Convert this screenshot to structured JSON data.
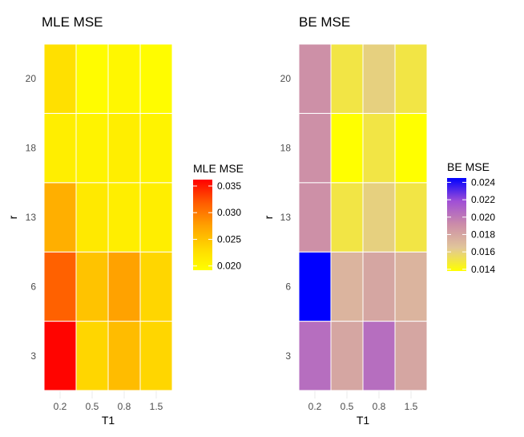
{
  "chart_data": [
    {
      "type": "heatmap",
      "title": "MLE MSE",
      "xlabel": "T1",
      "ylabel": "r",
      "x_categories": [
        "0.2",
        "0.5",
        "0.8",
        "1.5"
      ],
      "y_categories": [
        "3",
        "6",
        "13",
        "18",
        "20"
      ],
      "values": [
        [
          0.036,
          0.0235,
          0.0255,
          0.0235
        ],
        [
          0.0315,
          0.025,
          0.0275,
          0.0235
        ],
        [
          0.0265,
          0.0215,
          0.021,
          0.021
        ],
        [
          0.021,
          0.0205,
          0.021,
          0.0205
        ],
        [
          0.0225,
          0.0195,
          0.02,
          0.0195
        ]
      ],
      "legend": {
        "title": "MLE MSE",
        "ticks": [
          "0.035",
          "0.030",
          "0.025",
          "0.020"
        ],
        "tick_values": [
          0.035,
          0.03,
          0.025,
          0.02
        ],
        "range": [
          0.0192,
          0.0362
        ],
        "colors": [
          "#ffff00",
          "#ffd700",
          "#ff9f00",
          "#ff5a00",
          "#ff0000"
        ]
      },
      "grid": true
    },
    {
      "type": "heatmap",
      "title": "BE MSE",
      "xlabel": "T1",
      "ylabel": "r",
      "x_categories": [
        "0.2",
        "0.5",
        "0.8",
        "1.5"
      ],
      "y_categories": [
        "3",
        "6",
        "13",
        "18",
        "20"
      ],
      "values": [
        [
          0.0205,
          0.018,
          0.0205,
          0.018
        ],
        [
          0.0245,
          0.0173,
          0.018,
          0.0173
        ],
        [
          0.019,
          0.015,
          0.016,
          0.015
        ],
        [
          0.019,
          0.0138,
          0.015,
          0.0138
        ],
        [
          0.019,
          0.015,
          0.016,
          0.015
        ]
      ],
      "legend": {
        "title": "BE MSE",
        "ticks": [
          "0.024",
          "0.022",
          "0.020",
          "0.018",
          "0.016",
          "0.014"
        ],
        "tick_values": [
          0.024,
          0.022,
          0.02,
          0.018,
          0.016,
          0.014
        ],
        "range": [
          0.0138,
          0.0245
        ],
        "colors": [
          "#ffff00",
          "#e1c69a",
          "#cc8da8",
          "#a04fd6",
          "#0000ff"
        ]
      },
      "grid": true
    }
  ]
}
